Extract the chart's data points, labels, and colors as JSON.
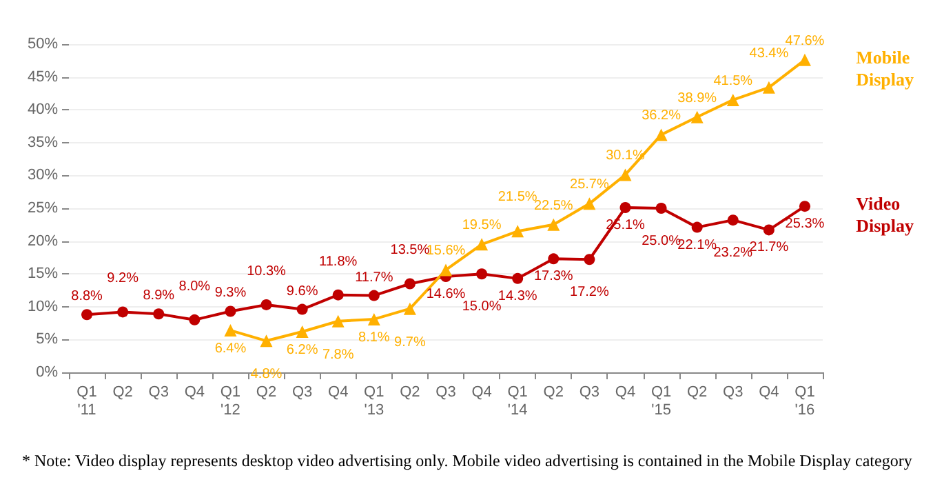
{
  "chart_data": {
    "type": "line",
    "categories": [
      "Q1\n'11",
      "Q2",
      "Q3",
      "Q4",
      "Q1\n'12",
      "Q2",
      "Q3",
      "Q4",
      "Q1\n'13",
      "Q2",
      "Q3",
      "Q4",
      "Q1\n'14",
      "Q2",
      "Q3",
      "Q4",
      "Q1\n'15",
      "Q2",
      "Q3",
      "Q4",
      "Q1\n'16"
    ],
    "series": [
      {
        "name": "Video Display",
        "color": "#c00000",
        "marker": "circle",
        "values": [
          8.8,
          9.2,
          8.9,
          8.0,
          9.3,
          10.3,
          9.6,
          11.8,
          11.7,
          13.5,
          14.6,
          15.0,
          14.3,
          17.3,
          17.2,
          25.1,
          25.0,
          22.1,
          23.2,
          21.7,
          25.3
        ],
        "value_labels": [
          "8.8%",
          "9.2%",
          "8.9%",
          "8.0%",
          "9.3%",
          "10.3%",
          "9.6%",
          "11.8%",
          "11.7%",
          "13.5%",
          "14.6%",
          "15.0%",
          "14.3%",
          "17.3%",
          "17.2%",
          "25.1%",
          "25.0%",
          "22.1%",
          "23.2%",
          "21.7%",
          "25.3%"
        ]
      },
      {
        "name": "Mobile Display",
        "color": "#ffb000",
        "marker": "triangle",
        "values": [
          null,
          null,
          null,
          null,
          6.4,
          4.8,
          6.2,
          7.8,
          8.1,
          9.7,
          15.6,
          19.5,
          21.5,
          22.5,
          25.7,
          30.1,
          36.2,
          38.9,
          41.5,
          43.4,
          47.6
        ],
        "value_labels": [
          null,
          null,
          null,
          null,
          "6.4%",
          "4.8%",
          "6.2%",
          "7.8%",
          "8.1%",
          "9.7%",
          "15.6%",
          "19.5%",
          "21.5%",
          "22.5%",
          "25.7%",
          "30.1%",
          "36.2%",
          "38.9%",
          "41.5%",
          "43.4%",
          "47.6%"
        ]
      }
    ],
    "ylim": [
      0,
      50
    ],
    "yticks": [
      {
        "value": 0,
        "label": "0%"
      },
      {
        "value": 5,
        "label": "5%"
      },
      {
        "value": 10,
        "label": "10%"
      },
      {
        "value": 15,
        "label": "15%"
      },
      {
        "value": 20,
        "label": "20%"
      },
      {
        "value": 25,
        "label": "25%"
      },
      {
        "value": 30,
        "label": "30%"
      },
      {
        "value": 35,
        "label": "35%"
      },
      {
        "value": 40,
        "label": "40%"
      },
      {
        "value": 45,
        "label": "45%"
      },
      {
        "value": 50,
        "label": "50%"
      }
    ],
    "grid": "y",
    "legend": false,
    "annotations": [
      "* Note: Video display represents desktop video advertising only. Mobile video advertising is contained in the Mobile Display category"
    ]
  }
}
